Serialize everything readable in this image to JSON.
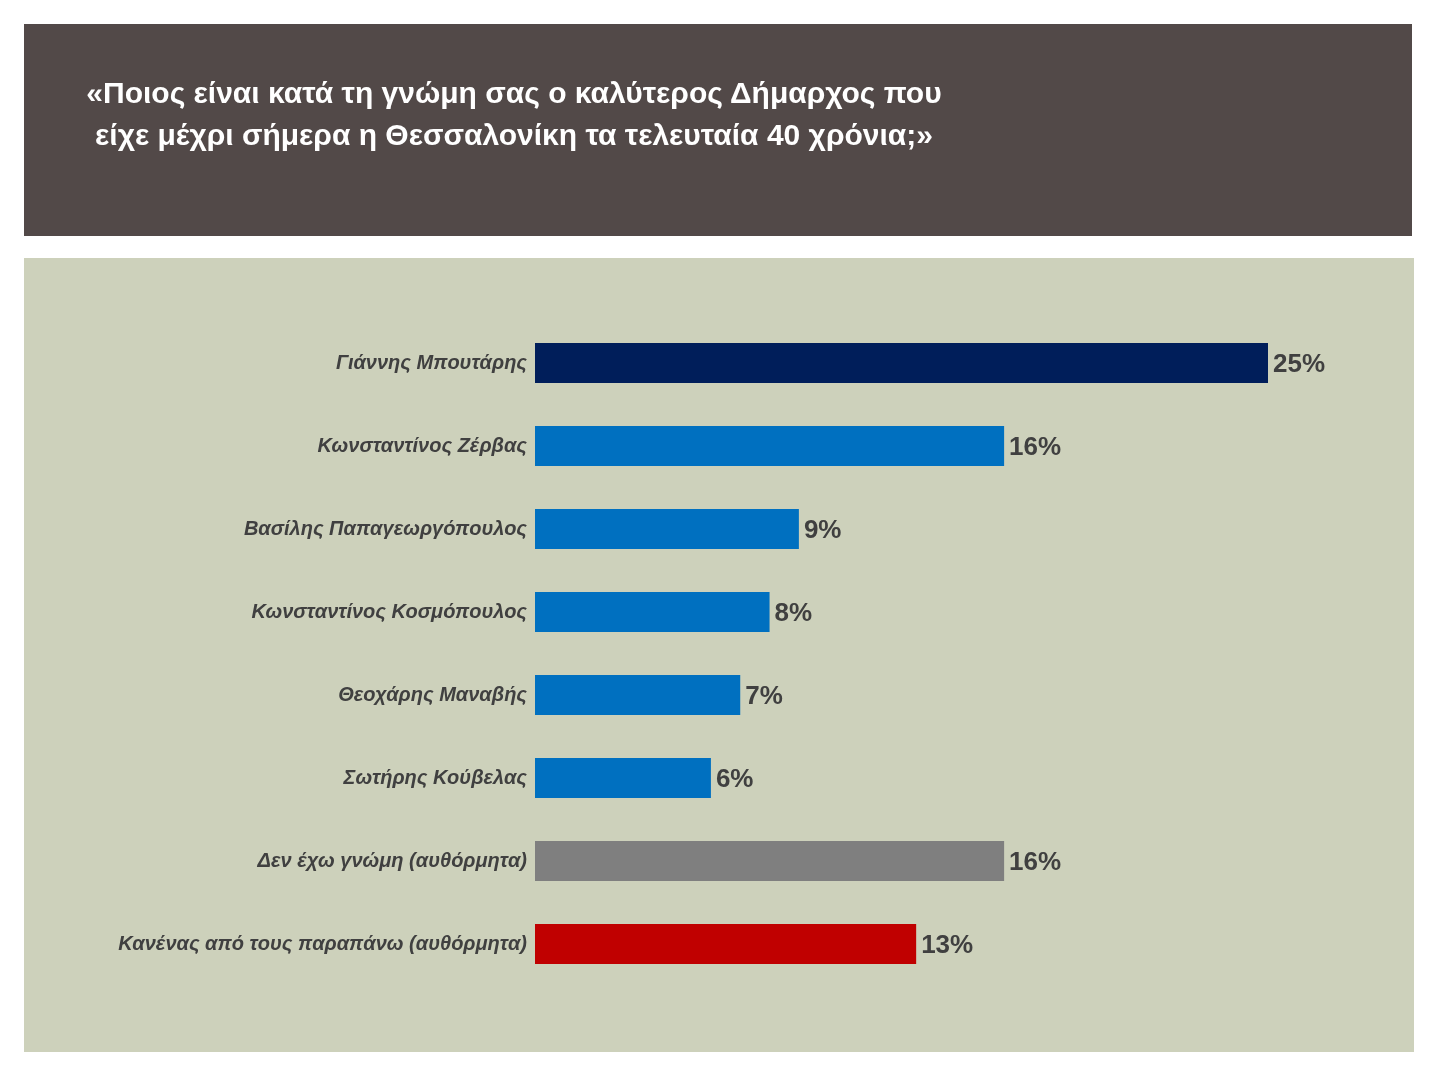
{
  "chart_data": {
    "type": "bar",
    "orientation": "horizontal",
    "title": "«Ποιος είναι κατά τη γνώμη σας ο καλύτερος Δήμαρχος που είχε μέχρι σήμερα η Θεσσαλονίκη τα τελευταία 40 χρόνια;»",
    "categories": [
      "Γιάννης Μπουτάρης",
      "Κωνσταντίνος Ζέρβας",
      "Βασίλης Παπαγεωργόπουλος",
      "Κωνσταντίνος Κοσμόπουλος",
      "Θεοχάρης Μαναβής",
      "Σωτήρης Κούβελας",
      "Δεν έχω γνώμη (αυθόρμητα)",
      "Κανένας από τους παραπάνω (αυθόρμητα)"
    ],
    "values": [
      25,
      16,
      9,
      8,
      7,
      6,
      16,
      13
    ],
    "value_labels": [
      "25%",
      "16%",
      "9%",
      "8%",
      "7%",
      "6%",
      "16%",
      "13%"
    ],
    "colors": [
      "#001e5a",
      "#0070c0",
      "#0070c0",
      "#0070c0",
      "#0070c0",
      "#0070c0",
      "#7f7f7f",
      "#c00000"
    ]
  }
}
